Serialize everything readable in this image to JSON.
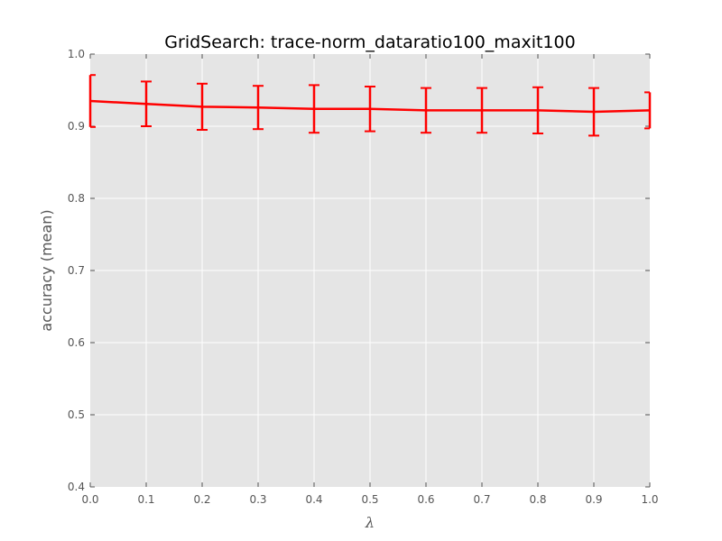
{
  "chart_data": {
    "type": "line",
    "title": "GridSearch: trace-norm_dataratio100_maxit100",
    "xlabel": "λ",
    "ylabel": "accuracy (mean)",
    "xlim": [
      0.0,
      1.0
    ],
    "ylim": [
      0.4,
      1.0
    ],
    "x_ticks": [
      "0.0",
      "0.1",
      "0.2",
      "0.3",
      "0.4",
      "0.5",
      "0.6",
      "0.7",
      "0.8",
      "0.9",
      "1.0"
    ],
    "y_ticks": [
      "0.4",
      "0.5",
      "0.6",
      "0.7",
      "0.8",
      "0.9",
      "1.0"
    ],
    "grid": true,
    "legend": "none",
    "background_color": "#e5e5e5",
    "grid_color": "#ffffff",
    "series": [
      {
        "color": "#ff0000",
        "x": [
          0.0,
          0.1,
          0.2,
          0.3,
          0.4,
          0.5,
          0.6,
          0.7,
          0.8,
          0.9,
          1.0
        ],
        "y": [
          0.935,
          0.931,
          0.927,
          0.926,
          0.924,
          0.924,
          0.922,
          0.922,
          0.922,
          0.92,
          0.922
        ],
        "yerr": [
          0.036,
          0.031,
          0.032,
          0.03,
          0.033,
          0.031,
          0.031,
          0.031,
          0.032,
          0.033,
          0.025
        ]
      }
    ]
  }
}
